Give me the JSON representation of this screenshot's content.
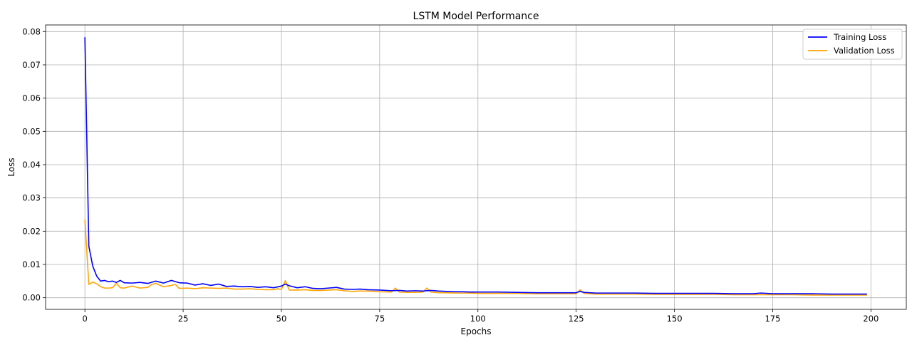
{
  "chart_data": {
    "type": "line",
    "title": "LSTM Model Performance",
    "xlabel": "Epochs",
    "ylabel": "Loss",
    "xlim": [
      -10,
      209
    ],
    "ylim": [
      -0.0035,
      0.082
    ],
    "xticks": [
      0,
      25,
      50,
      75,
      100,
      125,
      150,
      175,
      200
    ],
    "yticks": [
      0.0,
      0.01,
      0.02,
      0.03,
      0.04,
      0.05,
      0.06,
      0.07,
      0.08
    ],
    "ytick_labels": [
      "0.00",
      "0.01",
      "0.02",
      "0.03",
      "0.04",
      "0.05",
      "0.06",
      "0.07",
      "0.08"
    ],
    "grid": true,
    "legend_position": "top-right",
    "series": [
      {
        "name": "Training Loss",
        "color": "#0000ff",
        "x": [
          0,
          1,
          2,
          3,
          4,
          5,
          6,
          7,
          8,
          9,
          10,
          12,
          14,
          16,
          18,
          20,
          22,
          24,
          26,
          28,
          30,
          32,
          34,
          36,
          38,
          40,
          42,
          44,
          46,
          48,
          50,
          51,
          52,
          54,
          56,
          58,
          60,
          62,
          64,
          66,
          68,
          70,
          72,
          75,
          78,
          80,
          82,
          84,
          86,
          88,
          90,
          92,
          94,
          96,
          98,
          100,
          105,
          110,
          115,
          120,
          125,
          126,
          127,
          130,
          135,
          140,
          145,
          150,
          155,
          160,
          165,
          170,
          172,
          175,
          180,
          185,
          190,
          195,
          199
        ],
        "values": [
          0.0783,
          0.0155,
          0.0095,
          0.0065,
          0.005,
          0.0052,
          0.0048,
          0.005,
          0.0046,
          0.0052,
          0.0045,
          0.0044,
          0.0046,
          0.0043,
          0.005,
          0.0044,
          0.0052,
          0.0045,
          0.0044,
          0.0038,
          0.0042,
          0.0037,
          0.0041,
          0.0034,
          0.0035,
          0.0033,
          0.0034,
          0.0031,
          0.0033,
          0.003,
          0.0035,
          0.0041,
          0.0036,
          0.003,
          0.0033,
          0.0028,
          0.0027,
          0.0029,
          0.0031,
          0.0026,
          0.0025,
          0.0026,
          0.0024,
          0.0023,
          0.0021,
          0.0022,
          0.002,
          0.0021,
          0.002,
          0.0022,
          0.002,
          0.0019,
          0.0018,
          0.0018,
          0.0017,
          0.0017,
          0.0017,
          0.0016,
          0.0015,
          0.0015,
          0.0015,
          0.0019,
          0.0016,
          0.0014,
          0.0014,
          0.0014,
          0.0013,
          0.0013,
          0.0013,
          0.0013,
          0.0012,
          0.0012,
          0.0014,
          0.0012,
          0.0012,
          0.0012,
          0.0011,
          0.0011,
          0.0011
        ]
      },
      {
        "name": "Validation Loss",
        "color": "#ffa500",
        "x": [
          0,
          1,
          2,
          3,
          4,
          5,
          6,
          7,
          8,
          9,
          10,
          12,
          14,
          16,
          17,
          18,
          20,
          22,
          23,
          24,
          26,
          28,
          30,
          32,
          34,
          36,
          38,
          40,
          42,
          44,
          46,
          48,
          49,
          50,
          51,
          52,
          54,
          56,
          58,
          60,
          62,
          64,
          66,
          68,
          70,
          72,
          75,
          78,
          79,
          80,
          82,
          84,
          86,
          87,
          88,
          90,
          92,
          94,
          96,
          98,
          100,
          105,
          110,
          115,
          120,
          125,
          126,
          127,
          130,
          135,
          140,
          145,
          150,
          155,
          160,
          165,
          170,
          175,
          180,
          185,
          190,
          195,
          199
        ],
        "values": [
          0.0235,
          0.004,
          0.0047,
          0.0042,
          0.0033,
          0.0029,
          0.0029,
          0.003,
          0.0043,
          0.003,
          0.0029,
          0.0035,
          0.0029,
          0.0031,
          0.004,
          0.0043,
          0.0033,
          0.0037,
          0.004,
          0.0028,
          0.0029,
          0.0027,
          0.003,
          0.0029,
          0.0028,
          0.0029,
          0.0026,
          0.0026,
          0.0027,
          0.0025,
          0.0024,
          0.0024,
          0.0027,
          0.0025,
          0.0051,
          0.0023,
          0.0023,
          0.0024,
          0.0022,
          0.0022,
          0.0023,
          0.0024,
          0.0021,
          0.0019,
          0.002,
          0.002,
          0.0018,
          0.0017,
          0.0029,
          0.0017,
          0.0016,
          0.0016,
          0.0017,
          0.0029,
          0.0017,
          0.0015,
          0.0015,
          0.0014,
          0.0014,
          0.0014,
          0.0013,
          0.0013,
          0.0013,
          0.0012,
          0.0012,
          0.0012,
          0.0024,
          0.0013,
          0.0011,
          0.0011,
          0.0011,
          0.001,
          0.001,
          0.001,
          0.001,
          0.0009,
          0.0009,
          0.0009,
          0.0009,
          0.0008,
          0.0008,
          0.0008,
          0.0008
        ]
      }
    ]
  }
}
